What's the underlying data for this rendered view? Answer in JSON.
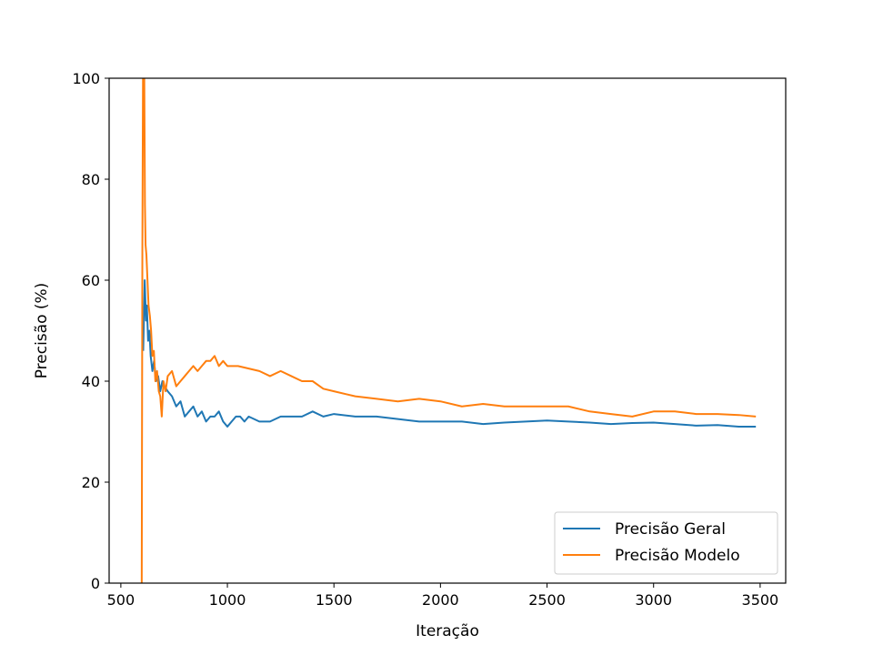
{
  "chart_data": {
    "type": "line",
    "title": "",
    "xlabel": "Iteração",
    "ylabel": "Precisão (%)",
    "xlim": [
      445,
      3620
    ],
    "ylim": [
      0,
      100
    ],
    "xticks": [
      500,
      1000,
      1500,
      2000,
      2500,
      3000,
      3500
    ],
    "yticks": [
      0,
      20,
      40,
      60,
      80,
      100
    ],
    "grid": false,
    "legend_position": "lower-right",
    "series": [
      {
        "name": "Precisão Geral",
        "color": "#1f77b4",
        "x": [
          605,
          612,
          618,
          622,
          628,
          634,
          640,
          648,
          656,
          665,
          675,
          685,
          695,
          705,
          720,
          740,
          760,
          780,
          800,
          820,
          840,
          860,
          880,
          900,
          920,
          940,
          960,
          980,
          1000,
          1020,
          1040,
          1060,
          1080,
          1100,
          1150,
          1200,
          1250,
          1300,
          1350,
          1400,
          1450,
          1500,
          1600,
          1700,
          1800,
          1900,
          2000,
          2100,
          2200,
          2300,
          2400,
          2500,
          2600,
          2700,
          2800,
          2900,
          3000,
          3100,
          3200,
          3300,
          3400,
          3480
        ],
        "y": [
          46,
          60,
          52,
          55,
          48,
          50,
          45,
          42,
          44,
          40,
          41,
          38,
          40,
          39,
          38,
          37,
          35,
          36,
          33,
          34,
          35,
          33,
          34,
          32,
          33,
          33,
          34,
          32,
          31,
          32,
          33,
          33,
          32,
          33,
          32,
          32,
          33,
          33,
          33,
          34,
          33,
          33.5,
          33,
          33,
          32.5,
          32,
          32,
          32,
          31.5,
          31.8,
          32,
          32.2,
          32,
          31.8,
          31.5,
          31.7,
          31.8,
          31.5,
          31.2,
          31.3,
          31,
          31
        ]
      },
      {
        "name": "Precisão Modelo",
        "color": "#ff7f0e",
        "x": [
          598,
          601,
          604,
          607,
          610,
          613,
          616,
          620,
          625,
          630,
          636,
          642,
          648,
          655,
          662,
          670,
          678,
          685,
          692,
          700,
          710,
          720,
          740,
          760,
          780,
          800,
          820,
          840,
          860,
          880,
          900,
          920,
          940,
          960,
          980,
          1000,
          1050,
          1100,
          1150,
          1200,
          1250,
          1300,
          1350,
          1400,
          1450,
          1500,
          1600,
          1700,
          1800,
          1900,
          2000,
          2100,
          2200,
          2300,
          2400,
          2500,
          2600,
          2700,
          2800,
          2900,
          3000,
          3100,
          3200,
          3300,
          3400,
          3480
        ],
        "y": [
          0,
          66,
          100,
          90,
          100,
          75,
          67,
          65,
          60,
          55,
          53,
          50,
          45,
          46,
          40,
          42,
          38,
          37,
          33,
          40,
          38,
          41,
          42,
          39,
          40,
          41,
          42,
          43,
          42,
          43,
          44,
          44,
          45,
          43,
          44,
          43,
          43,
          42.5,
          42,
          41,
          42,
          41,
          40,
          40,
          38.5,
          38,
          37,
          36.5,
          36,
          36.5,
          36,
          35,
          35.5,
          35,
          35,
          35,
          35,
          34,
          33.5,
          33,
          34,
          34,
          33.5,
          33.5,
          33.3,
          33
        ]
      }
    ]
  }
}
